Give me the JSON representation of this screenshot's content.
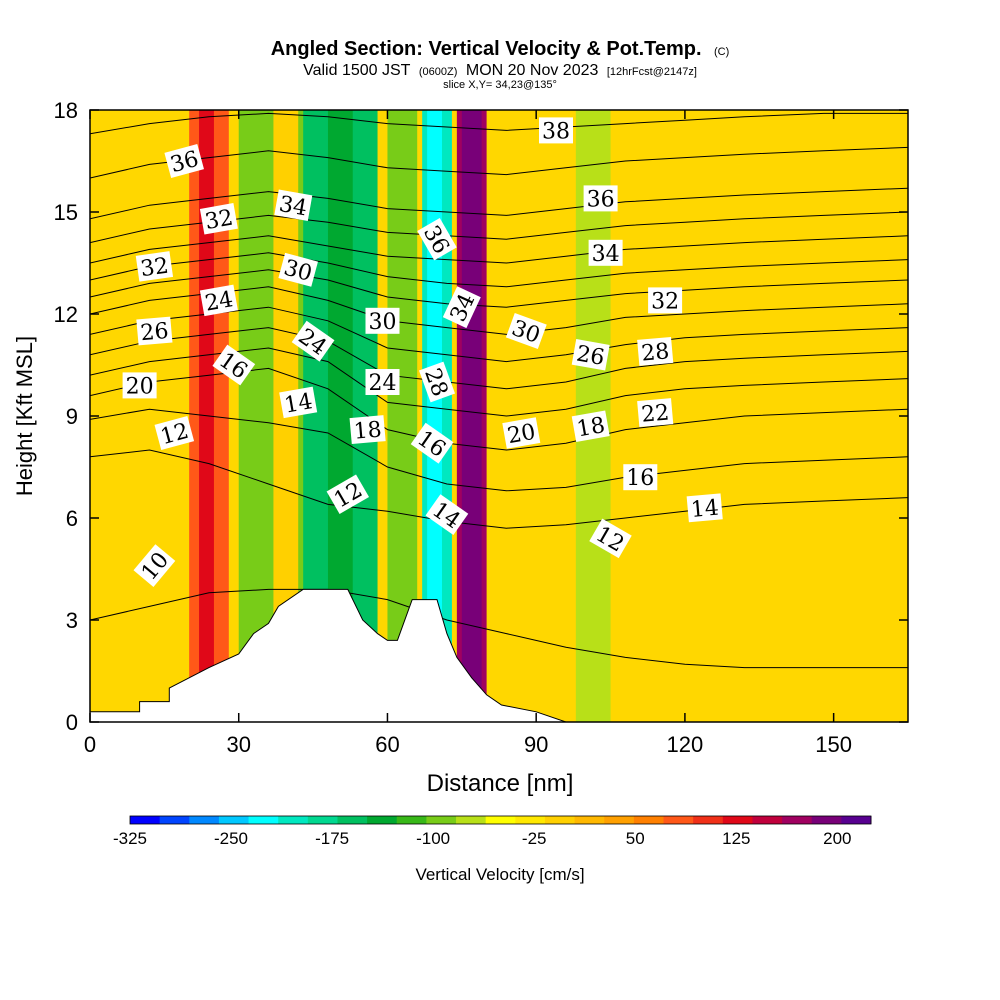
{
  "chart_data": {
    "type": "heatmap",
    "title": "Angled Section: Vertical Velocity & Pot.Temp.",
    "title_mark": "(C)",
    "subtitle": {
      "part1": "Valid 1500 JST",
      "part2": "(0600Z)",
      "part3": "MON 20 Nov 2023",
      "part4": "[12hrFcst@2147z]"
    },
    "slice_text": "slice X,Y= 34,23@135°",
    "xlabel": "Distance [nm]",
    "ylabel": "Height [Kft MSL]",
    "xlim": [
      0,
      165
    ],
    "ylim": [
      0,
      18
    ],
    "x_ticks": [
      "0",
      "30",
      "60",
      "90",
      "120",
      "150"
    ],
    "y_ticks": [
      "0",
      "3",
      "6",
      "9",
      "12",
      "15",
      "18"
    ],
    "colorbar": {
      "label": "Vertical Velocity [cm/s]",
      "tick_labels": [
        "-325",
        "-250",
        "-175",
        "-100",
        "-25",
        "50",
        "125",
        "200"
      ],
      "colors": [
        "#0000ff",
        "#0044ff",
        "#0088ff",
        "#00c8ff",
        "#00ffff",
        "#00e8c0",
        "#00d890",
        "#00c060",
        "#00a830",
        "#38b818",
        "#78cc18",
        "#b8e018",
        "#ffff00",
        "#ffe800",
        "#ffd000",
        "#ffb800",
        "#ffa000",
        "#ff8000",
        "#ff5818",
        "#f03018",
        "#e00818",
        "#c0003c",
        "#a00060",
        "#780078",
        "#580090"
      ]
    },
    "velocity_columns": [
      {
        "x": [
          0,
          30
        ],
        "base": "#ffd700",
        "bands": [
          {
            "x0": 20,
            "x1": 28,
            "color": "#ff5818"
          },
          {
            "x0": 22,
            "x1": 25,
            "color": "#e00818"
          }
        ]
      },
      {
        "x": [
          30,
          45
        ],
        "base": "#78cc18",
        "bands": [
          {
            "x0": 37,
            "x1": 42,
            "color": "#ffd000"
          }
        ]
      },
      {
        "x": [
          43,
          58
        ],
        "base": "#00c060",
        "bands": [
          {
            "x0": 48,
            "x1": 53,
            "color": "#00a830"
          }
        ]
      },
      {
        "x": [
          60,
          66
        ],
        "base": "#78cc18",
        "bands": []
      },
      {
        "x": [
          67,
          73
        ],
        "base": "#00e8c0",
        "bands": [
          {
            "x0": 68,
            "x1": 71,
            "color": "#00ffff"
          }
        ]
      },
      {
        "x": [
          74,
          80
        ],
        "base": "#a00060",
        "bands": [
          {
            "x0": 75,
            "x1": 79,
            "color": "#780078"
          }
        ]
      },
      {
        "x": [
          98,
          105
        ],
        "base": "#b8e018",
        "bands": []
      }
    ],
    "theta_contours": [
      {
        "label": "10",
        "heights": [
          3.0,
          3.4,
          3.8,
          3.9,
          3.9,
          3.6,
          3.0,
          2.6,
          2.2,
          1.9,
          1.7,
          1.6,
          1.6,
          1.6
        ]
      },
      {
        "label": "12",
        "heights": [
          7.8,
          8.0,
          7.6,
          7.0,
          6.4,
          6.2,
          5.9,
          5.7,
          5.8,
          6.0,
          6.2,
          6.4,
          6.5,
          6.6
        ]
      },
      {
        "label": "14",
        "heights": [
          8.9,
          9.2,
          9.0,
          8.8,
          8.5,
          7.5,
          7.0,
          6.8,
          6.9,
          7.2,
          7.4,
          7.6,
          7.7,
          7.8
        ]
      },
      {
        "label": "16",
        "heights": [
          9.6,
          10.0,
          10.2,
          10.4,
          9.8,
          8.6,
          8.2,
          8.0,
          8.2,
          8.6,
          8.8,
          9.0,
          9.1,
          9.2
        ]
      },
      {
        "label": "18",
        "heights": [
          10.2,
          10.6,
          10.8,
          11.0,
          10.6,
          9.4,
          9.2,
          9.0,
          9.2,
          9.6,
          9.8,
          9.9,
          10.0,
          10.1
        ]
      },
      {
        "label": "20",
        "heights": [
          10.8,
          11.2,
          11.4,
          11.6,
          11.2,
          10.2,
          10.0,
          9.8,
          10.0,
          10.4,
          10.6,
          10.7,
          10.8,
          10.9
        ]
      },
      {
        "label": "22",
        "heights": [
          11.4,
          11.8,
          12.0,
          12.2,
          11.8,
          11.0,
          10.8,
          10.6,
          10.8,
          11.1,
          11.3,
          11.4,
          11.5,
          11.6
        ]
      },
      {
        "label": "24",
        "heights": [
          12.0,
          12.4,
          12.6,
          12.8,
          12.4,
          11.8,
          11.6,
          11.4,
          11.6,
          11.9,
          12.0,
          12.1,
          12.2,
          12.3
        ]
      },
      {
        "label": "26",
        "heights": [
          12.5,
          12.9,
          13.1,
          13.3,
          13.0,
          12.5,
          12.3,
          12.2,
          12.4,
          12.6,
          12.7,
          12.8,
          12.9,
          13.0
        ]
      },
      {
        "label": "28",
        "heights": [
          13.0,
          13.4,
          13.6,
          13.8,
          13.5,
          13.1,
          12.9,
          12.8,
          13.0,
          13.2,
          13.3,
          13.4,
          13.5,
          13.6
        ]
      },
      {
        "label": "30",
        "heights": [
          13.5,
          13.9,
          14.1,
          14.3,
          14.0,
          13.7,
          13.6,
          13.5,
          13.7,
          13.9,
          14.0,
          14.1,
          14.2,
          14.3
        ]
      },
      {
        "label": "32",
        "heights": [
          14.1,
          14.5,
          14.7,
          14.9,
          14.7,
          14.4,
          14.3,
          14.2,
          14.4,
          14.6,
          14.7,
          14.8,
          14.9,
          15.0
        ]
      },
      {
        "label": "34",
        "heights": [
          14.8,
          15.2,
          15.4,
          15.6,
          15.4,
          15.1,
          15.0,
          14.9,
          15.1,
          15.3,
          15.4,
          15.5,
          15.6,
          15.7
        ]
      },
      {
        "label": "36",
        "heights": [
          16.0,
          16.4,
          16.6,
          16.8,
          16.6,
          16.3,
          16.2,
          16.1,
          16.3,
          16.5,
          16.6,
          16.7,
          16.8,
          16.9
        ]
      },
      {
        "label": "38",
        "heights": [
          17.3,
          17.6,
          17.8,
          17.9,
          17.8,
          17.6,
          17.5,
          17.4,
          17.5,
          17.6,
          17.7,
          17.8,
          17.9,
          17.9
        ]
      }
    ],
    "contour_x": [
      0,
      12,
      24,
      36,
      48,
      60,
      72,
      84,
      96,
      108,
      120,
      132,
      148,
      165
    ],
    "contour_labels": [
      {
        "text": "36",
        "x": 19,
        "y": 16.5,
        "angle": -15
      },
      {
        "text": "32",
        "x": 26,
        "y": 14.8,
        "angle": -10
      },
      {
        "text": "32",
        "x": 13,
        "y": 13.4,
        "angle": -8
      },
      {
        "text": "24",
        "x": 26,
        "y": 12.4,
        "angle": -10
      },
      {
        "text": "26",
        "x": 13,
        "y": 11.5,
        "angle": -5
      },
      {
        "text": "16",
        "x": 29,
        "y": 10.5,
        "angle": 35
      },
      {
        "text": "20",
        "x": 10,
        "y": 9.9,
        "angle": 0
      },
      {
        "text": "12",
        "x": 17,
        "y": 8.5,
        "angle": -15
      },
      {
        "text": "34",
        "x": 41,
        "y": 15.2,
        "angle": 10
      },
      {
        "text": "30",
        "x": 42,
        "y": 13.3,
        "angle": 15
      },
      {
        "text": "24",
        "x": 45,
        "y": 11.2,
        "angle": 35
      },
      {
        "text": "14",
        "x": 42,
        "y": 9.4,
        "angle": -10
      },
      {
        "text": "12",
        "x": 52,
        "y": 6.7,
        "angle": -30
      },
      {
        "text": "30",
        "x": 59,
        "y": 11.8,
        "angle": 0
      },
      {
        "text": "24",
        "x": 59,
        "y": 10.0,
        "angle": 0
      },
      {
        "text": "18",
        "x": 56,
        "y": 8.6,
        "angle": -5
      },
      {
        "text": "36",
        "x": 70,
        "y": 14.2,
        "angle": 60
      },
      {
        "text": "34",
        "x": 75,
        "y": 12.2,
        "angle": -65
      },
      {
        "text": "28",
        "x": 70,
        "y": 10.0,
        "angle": 70
      },
      {
        "text": "16",
        "x": 69,
        "y": 8.2,
        "angle": 35
      },
      {
        "text": "14",
        "x": 72,
        "y": 6.1,
        "angle": 35
      },
      {
        "text": "30",
        "x": 88,
        "y": 11.5,
        "angle": 20
      },
      {
        "text": "20",
        "x": 87,
        "y": 8.5,
        "angle": -10
      },
      {
        "text": "38",
        "x": 94,
        "y": 17.4,
        "angle": 0
      },
      {
        "text": "36",
        "x": 103,
        "y": 15.4,
        "angle": 0
      },
      {
        "text": "34",
        "x": 104,
        "y": 13.8,
        "angle": 0
      },
      {
        "text": "26",
        "x": 101,
        "y": 10.8,
        "angle": 10
      },
      {
        "text": "18",
        "x": 101,
        "y": 8.7,
        "angle": -10
      },
      {
        "text": "32",
        "x": 116,
        "y": 12.4,
        "angle": 0
      },
      {
        "text": "28",
        "x": 114,
        "y": 10.9,
        "angle": -5
      },
      {
        "text": "22",
        "x": 114,
        "y": 9.1,
        "angle": -5
      },
      {
        "text": "16",
        "x": 111,
        "y": 7.2,
        "angle": 0
      },
      {
        "text": "12",
        "x": 105,
        "y": 5.4,
        "angle": 30
      },
      {
        "text": "14",
        "x": 124,
        "y": 6.3,
        "angle": -5
      },
      {
        "text": "10",
        "x": 13,
        "y": 4.6,
        "angle": -50
      }
    ],
    "terrain": [
      [
        0,
        0.3
      ],
      [
        10,
        0.3
      ],
      [
        10,
        0.6
      ],
      [
        16,
        0.6
      ],
      [
        16,
        1.0
      ],
      [
        24,
        1.6
      ],
      [
        30,
        2.0
      ],
      [
        33,
        2.6
      ],
      [
        36,
        2.9
      ],
      [
        38,
        3.4
      ],
      [
        43,
        3.9
      ],
      [
        52,
        3.9
      ],
      [
        55,
        3.0
      ],
      [
        58,
        2.6
      ],
      [
        60,
        2.4
      ],
      [
        62,
        2.4
      ],
      [
        65,
        3.6
      ],
      [
        70,
        3.6
      ],
      [
        72,
        2.6
      ],
      [
        74,
        1.9
      ],
      [
        77,
        1.3
      ],
      [
        80,
        0.8
      ],
      [
        83,
        0.5
      ],
      [
        90,
        0.3
      ],
      [
        96,
        0.0
      ],
      [
        165,
        0.0
      ]
    ]
  }
}
